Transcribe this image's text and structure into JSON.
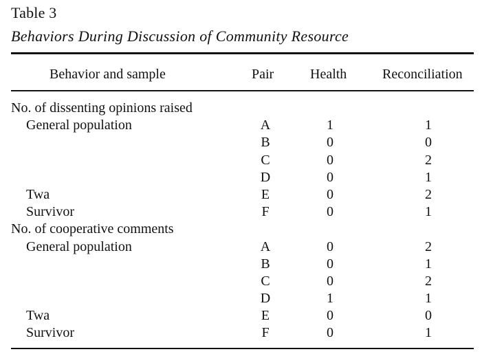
{
  "table": {
    "number": "Table 3",
    "caption": "Behaviors During Discussion of Community Resource",
    "headers": {
      "behavior": "Behavior and sample",
      "pair": "Pair",
      "health": "Health",
      "reconciliation": "Reconciliation"
    },
    "rows": [
      {
        "label": "No. of dissenting opinions raised",
        "indent": false,
        "pair": "",
        "health": "",
        "reconciliation": ""
      },
      {
        "label": "General population",
        "indent": true,
        "pair": "A",
        "health": "1",
        "reconciliation": "1"
      },
      {
        "label": "",
        "indent": true,
        "pair": "B",
        "health": "0",
        "reconciliation": "0"
      },
      {
        "label": "",
        "indent": true,
        "pair": "C",
        "health": "0",
        "reconciliation": "2"
      },
      {
        "label": "",
        "indent": true,
        "pair": "D",
        "health": "0",
        "reconciliation": "1"
      },
      {
        "label": "Twa",
        "indent": true,
        "pair": "E",
        "health": "0",
        "reconciliation": "2"
      },
      {
        "label": "Survivor",
        "indent": true,
        "pair": "F",
        "health": "0",
        "reconciliation": "1"
      },
      {
        "label": "No. of cooperative comments",
        "indent": false,
        "pair": "",
        "health": "",
        "reconciliation": ""
      },
      {
        "label": "General population",
        "indent": true,
        "pair": "A",
        "health": "0",
        "reconciliation": "2"
      },
      {
        "label": "",
        "indent": true,
        "pair": "B",
        "health": "0",
        "reconciliation": "1"
      },
      {
        "label": "",
        "indent": true,
        "pair": "C",
        "health": "0",
        "reconciliation": "2"
      },
      {
        "label": "",
        "indent": true,
        "pair": "D",
        "health": "1",
        "reconciliation": "1"
      },
      {
        "label": "Twa",
        "indent": true,
        "pair": "E",
        "health": "0",
        "reconciliation": "0"
      },
      {
        "label": "Survivor",
        "indent": true,
        "pair": "F",
        "health": "0",
        "reconciliation": "1"
      }
    ]
  }
}
